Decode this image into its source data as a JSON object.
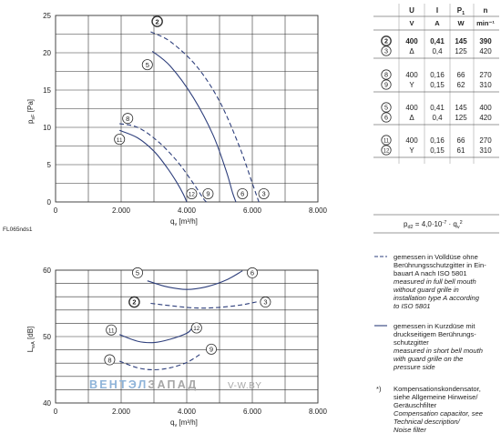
{
  "chart_data": [
    {
      "type": "line",
      "id": "pressure",
      "ylabel_main": "p",
      "ylabel_sub": "sF",
      "ylabel_unit": " [Pa]",
      "xlabel_main": "q",
      "xlabel_sub": "v",
      "xlabel_unit": " [m³/h]",
      "xlim": [
        0,
        8000
      ],
      "ylim": [
        0,
        25
      ],
      "xticks": [
        "0",
        "2.000",
        "4.000",
        "6.000",
        "8.000"
      ],
      "yticks": [
        "0",
        "5",
        "10",
        "15",
        "20",
        "25"
      ],
      "figure_id": "FL065nds1",
      "series": [
        {
          "label": "2",
          "style": "dashed",
          "x": [
            2900,
            3500,
            4300,
            5000,
            5600,
            6000,
            6200
          ],
          "y": [
            22.8,
            21.5,
            18.2,
            13.5,
            7.5,
            2.5,
            0
          ],
          "marker": [
            3100,
            24.2
          ]
        },
        {
          "label": "3",
          "style": "dashed",
          "x": [
            6200
          ],
          "y": [
            0
          ],
          "marker": [
            6350,
            1.1
          ]
        },
        {
          "label": "5",
          "style": "solid",
          "x": [
            2950,
            3500,
            4200,
            4800,
            5200,
            5400,
            5500
          ],
          "y": [
            20.2,
            18.2,
            14,
            9,
            4.2,
            1.2,
            0
          ],
          "marker": [
            2800,
            18.4
          ]
        },
        {
          "label": "6",
          "style": "solid",
          "x": [
            5500
          ],
          "y": [
            0
          ],
          "marker": [
            5700,
            1.1
          ]
        },
        {
          "label": "8",
          "style": "dashed",
          "x": [
            1950,
            2500,
            3100,
            3700,
            4200,
            4500,
            4600
          ],
          "y": [
            10.5,
            10,
            8.2,
            5.5,
            2.5,
            0.5,
            0
          ],
          "marker": [
            2200,
            11.2
          ]
        },
        {
          "label": "9",
          "style": "dashed",
          "x": [
            4600
          ],
          "y": [
            0
          ],
          "marker": [
            4650,
            1.1
          ]
        },
        {
          "label": "11",
          "style": "solid",
          "x": [
            1950,
            2500,
            3000,
            3400,
            3700,
            3900,
            4000
          ],
          "y": [
            9.6,
            8.6,
            6.8,
            4.6,
            2.6,
            1,
            0
          ],
          "marker": [
            1950,
            8.4
          ]
        },
        {
          "label": "12",
          "style": "solid",
          "x": [
            4000
          ],
          "y": [
            0
          ],
          "marker": [
            4150,
            1.1
          ]
        }
      ]
    },
    {
      "type": "line",
      "id": "noise",
      "ylabel_main": "L",
      "ylabel_sub": "wA",
      "ylabel_unit": " [dB]",
      "xlabel_main": "q",
      "xlabel_sub": "v",
      "xlabel_unit": " [m³/h]",
      "xlim": [
        0,
        8000
      ],
      "ylim": [
        40,
        60
      ],
      "xticks": [
        "0",
        "2.000",
        "4.000",
        "6.000",
        "8.000"
      ],
      "yticks": [
        "40",
        "50",
        "60"
      ],
      "series": [
        {
          "label": "5/6",
          "style": "solid",
          "x": [
            2800,
            3400,
            4000,
            4600,
            5200,
            5700
          ],
          "y": [
            58.4,
            57.5,
            57.1,
            57.5,
            58.5,
            59.9
          ],
          "marker_left": [
            2500,
            59.6
          ],
          "marker_right": [
            6000,
            59.6
          ],
          "label_left": "5",
          "label_right": "6"
        },
        {
          "label": "2/3",
          "style": "dashed",
          "x": [
            2900,
            3600,
            4300,
            5000,
            5700,
            6200
          ],
          "y": [
            55,
            54.6,
            54.3,
            54.4,
            54.8,
            55.3
          ],
          "marker_left": [
            2400,
            55.2
          ],
          "marker_right": [
            6400,
            55.2
          ],
          "label_left": "2",
          "label_right": "3"
        },
        {
          "label": "11/12",
          "style": "solid",
          "x": [
            1950,
            2500,
            3000,
            3500,
            4000,
            4150
          ],
          "y": [
            50.3,
            49.3,
            49.1,
            49.6,
            50.5,
            51.2
          ],
          "marker_left": [
            1700,
            51
          ],
          "marker_right": [
            4300,
            51.3
          ],
          "label_left": "11",
          "label_right": "12"
        },
        {
          "label": "8/9",
          "style": "dashed",
          "x": [
            1950,
            2500,
            3000,
            3500,
            4000,
            4400
          ],
          "y": [
            46.3,
            45.3,
            45,
            45.3,
            46.1,
            47.3
          ],
          "marker_left": [
            1650,
            46.5
          ],
          "marker_right": [
            4750,
            48.1
          ],
          "label_left": "8",
          "label_right": "9"
        }
      ]
    }
  ],
  "watermark": {
    "part1": "ВЕНТЭЛ",
    "part2": "ЗАПАД",
    "part3": "V-W.BY"
  },
  "table": {
    "headers": [
      "U",
      "I",
      "P",
      "n"
    ],
    "header_p_sub": "1",
    "units": [
      "V",
      "A",
      "W",
      "min⁻¹"
    ],
    "groups": [
      [
        {
          "id": "2",
          "u": "400",
          "i": "0,41",
          "p": "145",
          "n": "390",
          "bold": true
        },
        {
          "id": "3",
          "u": "Δ",
          "i": "0,4",
          "p": "125",
          "n": "420",
          "bold": false
        }
      ],
      [
        {
          "id": "8",
          "u": "400",
          "i": "0,16",
          "p": "66",
          "n": "270",
          "bold": false
        },
        {
          "id": "9",
          "u": "Y",
          "i": "0,15",
          "p": "62",
          "n": "310",
          "bold": false
        }
      ],
      [
        {
          "id": "5",
          "u": "400",
          "i": "0,41",
          "p": "145",
          "n": "400",
          "bold": false
        },
        {
          "id": "6",
          "u": "Δ",
          "i": "0,4",
          "p": "125",
          "n": "420",
          "bold": false
        }
      ],
      [
        {
          "id": "11",
          "u": "400",
          "i": "0,16",
          "p": "66",
          "n": "270",
          "bold": false
        },
        {
          "id": "12",
          "u": "Y",
          "i": "0,15",
          "p": "61",
          "n": "310",
          "bold": false
        }
      ]
    ],
    "formula_left": "p",
    "formula_sub": "d2",
    "formula_mid": " = 4,0·10",
    "formula_exp": "-7",
    "formula_right": " · q",
    "formula_sub2": "v",
    "formula_exp2": "2"
  },
  "legend": {
    "dashed": {
      "lines": [
        "gemessen in Volldüse ohne",
        "Berührungsschutzgitter in Ein-",
        "bauart A nach ISO 5801"
      ],
      "italic_lines": [
        "measured in full bell mouth",
        "without guard grille in",
        "installation type A according",
        "to ISO 5801"
      ]
    },
    "solid": {
      "lines": [
        "gemessen in Kurzdüse mit",
        "druckseitigem Berührungs-",
        "schutzgitter"
      ],
      "italic_lines": [
        "measured in short bell mouth",
        "with guard grille on the",
        "pressure side"
      ]
    },
    "note": {
      "marker": "*)",
      "lines": [
        "Kompensationskondensator,",
        "siehe Allgemeine Hinweise/",
        "Geräuschfilter"
      ],
      "italic_lines": [
        "Compensation capacitor, see",
        "Technical description/",
        "Noise filter"
      ]
    }
  },
  "colors": {
    "curve": "#2e3f7c",
    "grid": "#333333",
    "watermark_blue": "#8fb4d9",
    "watermark_gray": "#a6a6a6"
  }
}
